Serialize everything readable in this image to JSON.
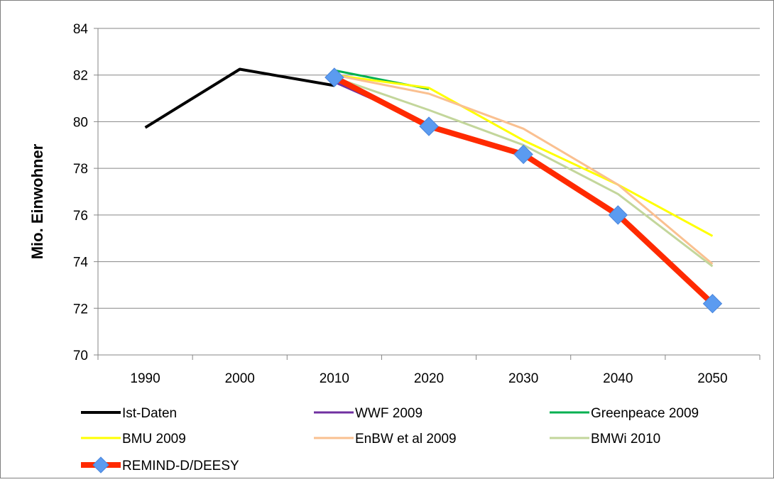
{
  "chart_data": {
    "type": "line",
    "title": "",
    "xlabel": "",
    "ylabel": "Mio. Einwohner",
    "ylim": [
      70,
      84
    ],
    "yticks": [
      "70",
      "72",
      "74",
      "76",
      "78",
      "80",
      "82",
      "84"
    ],
    "categories": [
      "1990",
      "2000",
      "2010",
      "2020",
      "2030",
      "2040",
      "2050"
    ],
    "grid": "horizontal",
    "legend_position": "bottom",
    "series": [
      {
        "name": "Ist-Daten",
        "color": "#000000",
        "values": [
          79.75,
          82.25,
          81.55,
          null,
          null,
          null,
          null
        ]
      },
      {
        "name": "WWF 2009",
        "color": "#7030A0",
        "values": [
          null,
          null,
          81.7,
          79.9,
          null,
          null,
          null
        ]
      },
      {
        "name": "Greenpeace 2009",
        "color": "#00B050",
        "values": [
          null,
          null,
          82.2,
          81.4,
          null,
          null,
          null
        ]
      },
      {
        "name": "BMU 2009",
        "color": "#FFFF00",
        "values": [
          null,
          null,
          82.0,
          81.45,
          79.2,
          77.3,
          75.1
        ]
      },
      {
        "name": "EnBW et al 2009",
        "color": "#FAC090",
        "values": [
          null,
          null,
          82.0,
          81.2,
          79.7,
          77.3,
          73.9
        ]
      },
      {
        "name": "BMWi 2010",
        "color": "#C3D69B",
        "values": [
          null,
          null,
          81.9,
          80.5,
          79.0,
          76.9,
          73.8
        ]
      },
      {
        "name": "REMIND-D/DEESY",
        "color": "#FF2A00",
        "marker_color": "#5B9BF0",
        "values": [
          null,
          null,
          81.9,
          79.8,
          78.6,
          76.0,
          72.2
        ]
      }
    ]
  }
}
